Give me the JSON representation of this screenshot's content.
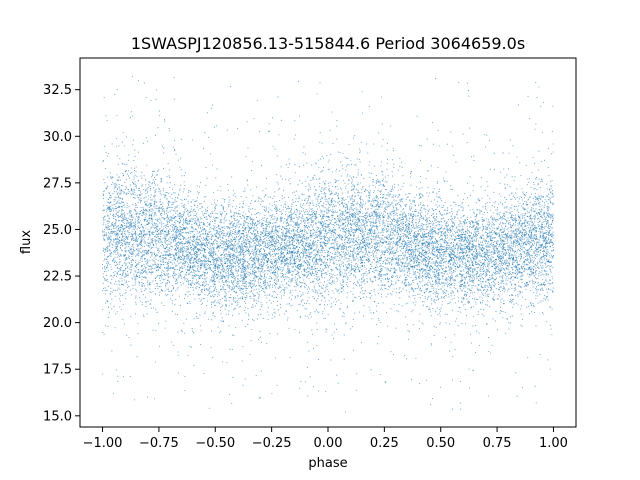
{
  "chart_data": {
    "type": "scatter",
    "title": "1SWASPJ120856.13-515844.6 Period 3064659.0s",
    "xlabel": "phase",
    "ylabel": "flux",
    "xlim": [
      -1.1,
      1.1
    ],
    "ylim": [
      14.4,
      34.2
    ],
    "x_ticks": [
      -1.0,
      -0.75,
      -0.5,
      -0.25,
      0.0,
      0.25,
      0.5,
      0.75,
      1.0
    ],
    "x_tick_labels": [
      "−1.00",
      "−0.75",
      "−0.50",
      "−0.25",
      "0.00",
      "0.25",
      "0.50",
      "0.75",
      "1.00"
    ],
    "y_ticks": [
      15.0,
      17.5,
      20.0,
      22.5,
      25.0,
      27.5,
      30.0,
      32.5
    ],
    "y_tick_labels": [
      "15.0",
      "17.5",
      "20.0",
      "22.5",
      "25.0",
      "27.5",
      "30.0",
      "32.5"
    ],
    "grid": false,
    "legend": "none",
    "point_color": "#1f77b4",
    "series": [
      {
        "phase_range": [
          -1.0,
          1.0
        ],
        "approx_points": 24000,
        "median_flux": 24.2,
        "core_flux_range": [
          22.0,
          26.5
        ],
        "flux_range": [
          15.2,
          33.3
        ],
        "profile": [
          {
            "phase": -1.0,
            "median": 24.5,
            "spread": 1.8
          },
          {
            "phase": -0.9,
            "median": 24.8,
            "spread": 1.7
          },
          {
            "phase": -0.8,
            "median": 24.7,
            "spread": 1.6
          },
          {
            "phase": -0.7,
            "median": 24.4,
            "spread": 1.5
          },
          {
            "phase": -0.6,
            "median": 24.0,
            "spread": 1.4
          },
          {
            "phase": -0.5,
            "median": 23.6,
            "spread": 1.4
          },
          {
            "phase": -0.4,
            "median": 23.5,
            "spread": 1.3
          },
          {
            "phase": -0.3,
            "median": 23.7,
            "spread": 1.4
          },
          {
            "phase": -0.2,
            "median": 24.0,
            "spread": 1.4
          },
          {
            "phase": -0.1,
            "median": 24.2,
            "spread": 1.5
          },
          {
            "phase": 0.0,
            "median": 24.5,
            "spread": 1.8
          },
          {
            "phase": 0.1,
            "median": 24.8,
            "spread": 1.7
          },
          {
            "phase": 0.2,
            "median": 24.7,
            "spread": 1.6
          },
          {
            "phase": 0.3,
            "median": 24.4,
            "spread": 1.5
          },
          {
            "phase": 0.4,
            "median": 24.0,
            "spread": 1.4
          },
          {
            "phase": 0.5,
            "median": 23.6,
            "spread": 1.4
          },
          {
            "phase": 0.6,
            "median": 23.5,
            "spread": 1.3
          },
          {
            "phase": 0.7,
            "median": 23.7,
            "spread": 1.4
          },
          {
            "phase": 0.8,
            "median": 24.0,
            "spread": 1.4
          },
          {
            "phase": 0.9,
            "median": 24.2,
            "spread": 1.5
          },
          {
            "phase": 1.0,
            "median": 24.5,
            "spread": 1.8
          }
        ]
      }
    ]
  }
}
